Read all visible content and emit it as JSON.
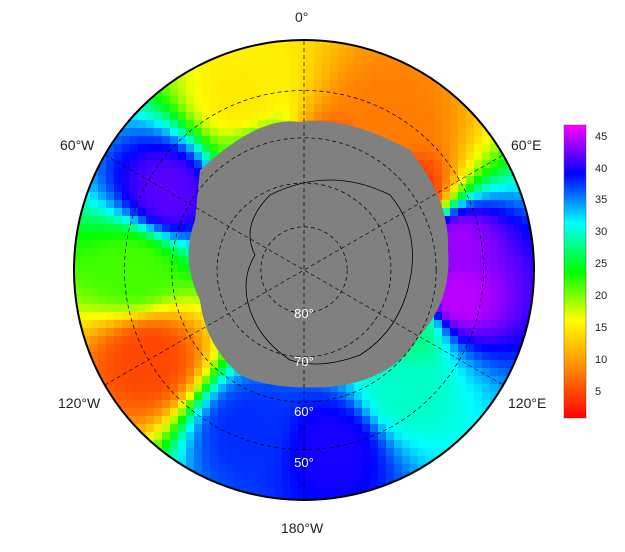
{
  "map": {
    "projection": "south polar stereographic",
    "longitude_labels": [
      "0°",
      "60°E",
      "120°E",
      "180°W",
      "120°W",
      "60°W"
    ],
    "latitude_labels": [
      "80°",
      "70°",
      "60°",
      "50°"
    ],
    "land_color": "#808080",
    "coastline_color": "#000000",
    "gridline_style": "dashed",
    "colormap": [
      "#ff0000",
      "#ff8800",
      "#ffff00",
      "#00ff00",
      "#00ffff",
      "#0000ff",
      "#ff00ff"
    ]
  },
  "colorbar": {
    "min": 1,
    "max": 47,
    "ticks": [
      "5",
      "10",
      "15",
      "20",
      "25",
      "30",
      "35",
      "40",
      "45"
    ]
  },
  "field_regions": [
    {
      "lon": 30,
      "lat": -52,
      "value": 8
    },
    {
      "lon": 55,
      "lat": -60,
      "value": 4
    },
    {
      "lon": 80,
      "lat": -55,
      "value": 44
    },
    {
      "lon": 100,
      "lat": -55,
      "value": 45
    },
    {
      "lon": 140,
      "lat": -55,
      "value": 30
    },
    {
      "lon": 170,
      "lat": -50,
      "value": 40
    },
    {
      "lon": -160,
      "lat": -52,
      "value": 38
    },
    {
      "lon": -120,
      "lat": -50,
      "value": 5
    },
    {
      "lon": -90,
      "lat": -52,
      "value": 22
    },
    {
      "lon": -60,
      "lat": -55,
      "value": 42
    },
    {
      "lon": -20,
      "lat": -50,
      "value": 15
    },
    {
      "lon": -20,
      "lat": -62,
      "value": 22
    },
    {
      "lon": 10,
      "lat": -65,
      "value": 5
    },
    {
      "lon": 120,
      "lat": -62,
      "value": 28
    }
  ]
}
